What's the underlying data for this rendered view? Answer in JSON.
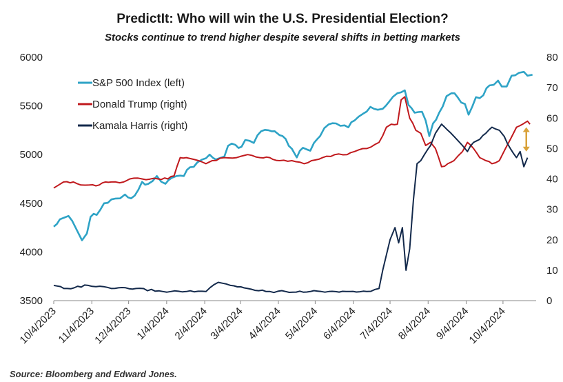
{
  "chart_data": {
    "type": "line",
    "title": "PredictIt: Who will win the U.S. Presidential Election?",
    "subtitle": "Stocks continue to trend higher despite several shifts in betting markets",
    "source": "Source: Bloomberg and Edward Jones.",
    "x_ticks": [
      "10/4/2023",
      "11/4/2023",
      "12/4/2023",
      "1/4/2024",
      "2/4/2024",
      "3/4/2024",
      "4/4/2024",
      "5/4/2024",
      "6/4/2024",
      "7/4/2024",
      "8/4/2024",
      "9/4/2024",
      "10/4/2024"
    ],
    "xlim": [
      "2023-10-04",
      "2024-10-31"
    ],
    "y_left": {
      "ticks": [
        3500,
        4000,
        4500,
        5000,
        5500,
        6000
      ],
      "lim": [
        3500,
        6000
      ]
    },
    "y_right": {
      "ticks": [
        0,
        10,
        20,
        30,
        40,
        50,
        60,
        70,
        80
      ],
      "lim": [
        0,
        80
      ]
    },
    "legend_position": "top-left",
    "grid": false,
    "series": [
      {
        "name": "S&P 500 Index (left)",
        "axis": "left",
        "color": "#2ea3c6",
        "points": [
          [
            "2023-10-04",
            4260
          ],
          [
            "2023-10-09",
            4335
          ],
          [
            "2023-10-12",
            4350
          ],
          [
            "2023-10-16",
            4370
          ],
          [
            "2023-10-19",
            4320
          ],
          [
            "2023-10-23",
            4220
          ],
          [
            "2023-10-27",
            4120
          ],
          [
            "2023-10-31",
            4190
          ],
          [
            "2023-11-03",
            4360
          ],
          [
            "2023-11-08",
            4380
          ],
          [
            "2023-11-14",
            4500
          ],
          [
            "2023-11-20",
            4540
          ],
          [
            "2023-11-27",
            4550
          ],
          [
            "2023-12-01",
            4590
          ],
          [
            "2023-12-06",
            4550
          ],
          [
            "2023-12-12",
            4640
          ],
          [
            "2023-12-15",
            4720
          ],
          [
            "2023-12-20",
            4700
          ],
          [
            "2023-12-27",
            4780
          ],
          [
            "2024-01-03",
            4700
          ],
          [
            "2024-01-08",
            4760
          ],
          [
            "2024-01-12",
            4780
          ],
          [
            "2024-01-18",
            4780
          ],
          [
            "2024-01-23",
            4870
          ],
          [
            "2024-01-29",
            4920
          ],
          [
            "2024-02-02",
            4950
          ],
          [
            "2024-02-08",
            5000
          ],
          [
            "2024-02-13",
            4950
          ],
          [
            "2024-02-20",
            4980
          ],
          [
            "2024-02-23",
            5090
          ],
          [
            "2024-02-29",
            5100
          ],
          [
            "2024-03-05",
            5080
          ],
          [
            "2024-03-08",
            5150
          ],
          [
            "2024-03-15",
            5120
          ],
          [
            "2024-03-21",
            5240
          ],
          [
            "2024-03-27",
            5250
          ],
          [
            "2024-04-01",
            5240
          ],
          [
            "2024-04-05",
            5200
          ],
          [
            "2024-04-10",
            5160
          ],
          [
            "2024-04-15",
            5060
          ],
          [
            "2024-04-19",
            4970
          ],
          [
            "2024-04-24",
            5070
          ],
          [
            "2024-04-30",
            5040
          ],
          [
            "2024-05-03",
            5120
          ],
          [
            "2024-05-08",
            5190
          ],
          [
            "2024-05-15",
            5310
          ],
          [
            "2024-05-21",
            5320
          ],
          [
            "2024-05-28",
            5300
          ],
          [
            "2024-05-31",
            5280
          ],
          [
            "2024-06-05",
            5350
          ],
          [
            "2024-06-12",
            5420
          ],
          [
            "2024-06-18",
            5490
          ],
          [
            "2024-06-24",
            5460
          ],
          [
            "2024-06-28",
            5470
          ],
          [
            "2024-07-03",
            5540
          ],
          [
            "2024-07-10",
            5630
          ],
          [
            "2024-07-16",
            5660
          ],
          [
            "2024-07-19",
            5510
          ],
          [
            "2024-07-24",
            5430
          ],
          [
            "2024-07-30",
            5440
          ],
          [
            "2024-08-02",
            5350
          ],
          [
            "2024-08-05",
            5190
          ],
          [
            "2024-08-08",
            5320
          ],
          [
            "2024-08-13",
            5430
          ],
          [
            "2024-08-19",
            5600
          ],
          [
            "2024-08-23",
            5630
          ],
          [
            "2024-08-28",
            5590
          ],
          [
            "2024-09-03",
            5520
          ],
          [
            "2024-09-06",
            5410
          ],
          [
            "2024-09-12",
            5590
          ],
          [
            "2024-09-18",
            5610
          ],
          [
            "2024-09-23",
            5710
          ],
          [
            "2024-09-30",
            5760
          ],
          [
            "2024-10-03",
            5700
          ],
          [
            "2024-10-07",
            5700
          ],
          [
            "2024-10-11",
            5810
          ],
          [
            "2024-10-17",
            5840
          ],
          [
            "2024-10-21",
            5850
          ],
          [
            "2024-10-24",
            5810
          ],
          [
            "2024-10-28",
            5820
          ]
        ]
      },
      {
        "name": "Donald Trump (right)",
        "axis": "right",
        "color": "#c0191d",
        "points": [
          [
            "2023-10-04",
            37
          ],
          [
            "2023-10-08",
            38
          ],
          [
            "2023-10-12",
            39
          ],
          [
            "2023-10-20",
            39
          ],
          [
            "2023-10-26",
            38
          ],
          [
            "2023-11-02",
            38
          ],
          [
            "2023-11-10",
            38
          ],
          [
            "2023-11-15",
            39
          ],
          [
            "2023-11-20",
            39
          ],
          [
            "2023-11-30",
            39
          ],
          [
            "2023-12-05",
            40
          ],
          [
            "2023-12-15",
            40
          ],
          [
            "2023-12-28",
            40
          ],
          [
            "2024-01-05",
            40
          ],
          [
            "2024-01-10",
            41
          ],
          [
            "2024-01-15",
            47
          ],
          [
            "2024-01-20",
            47
          ],
          [
            "2024-01-30",
            46
          ],
          [
            "2024-02-05",
            45
          ],
          [
            "2024-02-10",
            46
          ],
          [
            "2024-02-20",
            47
          ],
          [
            "2024-03-01",
            47
          ],
          [
            "2024-03-10",
            48
          ],
          [
            "2024-03-20",
            47
          ],
          [
            "2024-03-28",
            47
          ],
          [
            "2024-04-05",
            46
          ],
          [
            "2024-04-15",
            46
          ],
          [
            "2024-04-25",
            45
          ],
          [
            "2024-05-01",
            46
          ],
          [
            "2024-05-10",
            47
          ],
          [
            "2024-05-20",
            48
          ],
          [
            "2024-05-30",
            48
          ],
          [
            "2024-06-05",
            49
          ],
          [
            "2024-06-15",
            50
          ],
          [
            "2024-06-25",
            52
          ],
          [
            "2024-07-01",
            57
          ],
          [
            "2024-07-05",
            58
          ],
          [
            "2024-07-10",
            58
          ],
          [
            "2024-07-13",
            66
          ],
          [
            "2024-07-16",
            67
          ],
          [
            "2024-07-20",
            60
          ],
          [
            "2024-07-25",
            56
          ],
          [
            "2024-07-29",
            55
          ],
          [
            "2024-08-02",
            51
          ],
          [
            "2024-08-06",
            52
          ],
          [
            "2024-08-10",
            50
          ],
          [
            "2024-08-15",
            44
          ],
          [
            "2024-08-20",
            45
          ],
          [
            "2024-08-25",
            46
          ],
          [
            "2024-09-01",
            49
          ],
          [
            "2024-09-05",
            52
          ],
          [
            "2024-09-10",
            50
          ],
          [
            "2024-09-15",
            47
          ],
          [
            "2024-09-20",
            46
          ],
          [
            "2024-09-25",
            45
          ],
          [
            "2024-10-01",
            46
          ],
          [
            "2024-10-06",
            50
          ],
          [
            "2024-10-10",
            53
          ],
          [
            "2024-10-15",
            57
          ],
          [
            "2024-10-20",
            58
          ],
          [
            "2024-10-24",
            59
          ],
          [
            "2024-10-26",
            58
          ]
        ]
      },
      {
        "name": "Kamala Harris (right)",
        "axis": "right",
        "color": "#13294b",
        "points": [
          [
            "2023-10-04",
            5
          ],
          [
            "2023-10-15",
            4
          ],
          [
            "2023-11-01",
            5
          ],
          [
            "2023-11-20",
            4
          ],
          [
            "2023-12-10",
            4
          ],
          [
            "2024-01-01",
            3
          ],
          [
            "2024-01-20",
            3
          ],
          [
            "2024-02-05",
            3
          ],
          [
            "2024-02-15",
            6
          ],
          [
            "2024-02-25",
            5
          ],
          [
            "2024-03-10",
            4
          ],
          [
            "2024-03-25",
            3
          ],
          [
            "2024-04-10",
            3
          ],
          [
            "2024-04-30",
            3
          ],
          [
            "2024-05-15",
            3
          ],
          [
            "2024-06-01",
            3
          ],
          [
            "2024-06-15",
            3
          ],
          [
            "2024-06-25",
            4
          ],
          [
            "2024-06-28",
            10
          ],
          [
            "2024-07-01",
            15
          ],
          [
            "2024-07-04",
            20
          ],
          [
            "2024-07-08",
            24
          ],
          [
            "2024-07-11",
            19
          ],
          [
            "2024-07-14",
            24
          ],
          [
            "2024-07-17",
            10
          ],
          [
            "2024-07-20",
            17
          ],
          [
            "2024-07-23",
            33
          ],
          [
            "2024-07-26",
            45
          ],
          [
            "2024-07-29",
            46
          ],
          [
            "2024-08-01",
            48
          ],
          [
            "2024-08-06",
            51
          ],
          [
            "2024-08-10",
            55
          ],
          [
            "2024-08-15",
            58
          ],
          [
            "2024-08-20",
            56
          ],
          [
            "2024-08-25",
            54
          ],
          [
            "2024-09-01",
            51
          ],
          [
            "2024-09-05",
            49
          ],
          [
            "2024-09-10",
            52
          ],
          [
            "2024-09-15",
            53
          ],
          [
            "2024-09-20",
            55
          ],
          [
            "2024-09-25",
            57
          ],
          [
            "2024-10-01",
            56
          ],
          [
            "2024-10-05",
            54
          ],
          [
            "2024-10-10",
            50
          ],
          [
            "2024-10-15",
            47
          ],
          [
            "2024-10-18",
            49
          ],
          [
            "2024-10-21",
            44
          ],
          [
            "2024-10-24",
            47
          ]
        ]
      }
    ],
    "annotations": [
      {
        "type": "double-arrow",
        "color": "#d9a23a",
        "x": "2024-10-23",
        "y_right": [
          49,
          57
        ]
      }
    ]
  }
}
